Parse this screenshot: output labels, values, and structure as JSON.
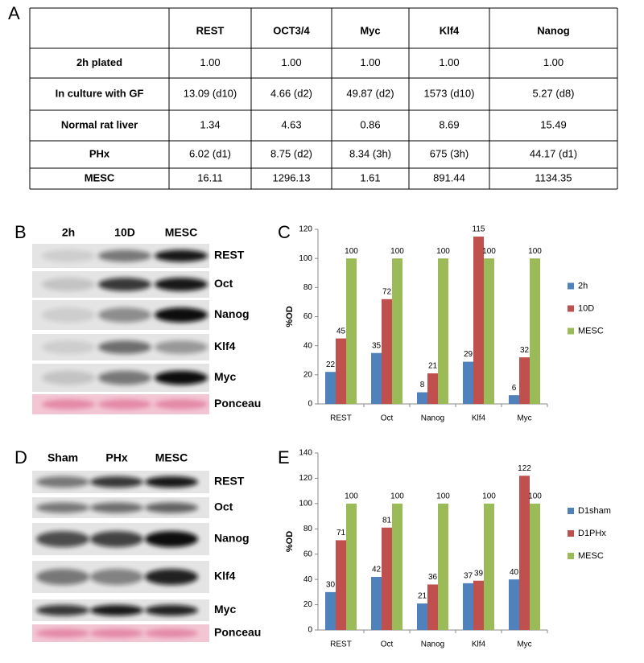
{
  "panel_labels": [
    "A",
    "B",
    "C",
    "D",
    "E"
  ],
  "table": {
    "header": [
      "REST",
      "OCT3/4",
      "Myc",
      "Klf4",
      "Nanog"
    ],
    "rows": [
      {
        "label": "2h plated",
        "values": [
          "1.00",
          "1.00",
          "1.00",
          "1.00",
          "1.00"
        ]
      },
      {
        "label": "In culture with GF",
        "values": [
          "13.09 (d10)",
          "4.66 (d2)",
          "49.87 (d2)",
          "1573 (d10)",
          "5.27 (d8)"
        ]
      },
      {
        "label": "Normal rat liver",
        "values": [
          "1.34",
          "4.63",
          "0.86",
          "8.69",
          "15.49"
        ]
      },
      {
        "label": "PHx",
        "values": [
          "6.02 (d1)",
          "8.75 (d2)",
          "8.34 (3h)",
          "675 (3h)",
          "44.17 (d1)"
        ]
      },
      {
        "label": "MESC",
        "values": [
          "16.11",
          "1296.13",
          "1.61",
          "891.44",
          "1134.35"
        ]
      }
    ]
  },
  "blots_b": {
    "lanes": [
      "2h",
      "10D",
      "MESC"
    ],
    "rows": [
      "REST",
      "Oct",
      "Nanog",
      "Klf4",
      "Myc",
      "Ponceau"
    ]
  },
  "blots_d": {
    "lanes": [
      "Sham",
      "PHx",
      "MESC"
    ],
    "rows": [
      "REST",
      "Oct",
      "Nanog",
      "Klf4",
      "Myc",
      "Ponceau"
    ]
  },
  "chart_data": [
    {
      "type": "bar",
      "y_label": "%OD",
      "categories": [
        "REST",
        "Oct",
        "Nanog",
        "Klf4",
        "Myc"
      ],
      "series": [
        {
          "name": "2h",
          "color": "#4f81bd",
          "values": [
            22,
            35,
            8,
            29,
            6
          ]
        },
        {
          "name": "10D",
          "color": "#c0504d",
          "values": [
            45,
            72,
            21,
            115,
            32
          ]
        },
        {
          "name": "MESC",
          "color": "#9bbb59",
          "values": [
            100,
            100,
            100,
            100,
            100
          ]
        }
      ],
      "ylim": [
        0,
        120
      ],
      "yticks": [
        0,
        20,
        40,
        60,
        80,
        100,
        120
      ],
      "legend": "right"
    },
    {
      "type": "bar",
      "y_label": "%OD",
      "categories": [
        "REST",
        "Oct",
        "Nanog",
        "Klf4",
        "Myc"
      ],
      "series": [
        {
          "name": "D1sham",
          "color": "#4f81bd",
          "values": [
            30,
            42,
            21,
            37,
            40
          ]
        },
        {
          "name": "D1PHx",
          "color": "#c0504d",
          "values": [
            71,
            81,
            36,
            39,
            122
          ]
        },
        {
          "name": "MESC",
          "color": "#9bbb59",
          "values": [
            100,
            100,
            100,
            100,
            100
          ]
        }
      ],
      "ylim": [
        0,
        140
      ],
      "yticks": [
        0,
        20,
        40,
        60,
        80,
        100,
        120,
        140
      ],
      "legend": "right"
    }
  ]
}
